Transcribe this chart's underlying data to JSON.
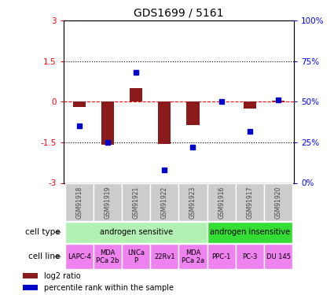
{
  "title": "GDS1699 / 5161",
  "samples": [
    "GSM91918",
    "GSM91919",
    "GSM91921",
    "GSM91922",
    "GSM91923",
    "GSM91916",
    "GSM91917",
    "GSM91920"
  ],
  "log2_ratio": [
    -0.2,
    -1.6,
    0.5,
    -1.55,
    -0.85,
    0.0,
    -0.25,
    0.05
  ],
  "percentile_rank": [
    35,
    25,
    68,
    8,
    22,
    50,
    32,
    51
  ],
  "ylim_left": [
    -3,
    3
  ],
  "ylim_right": [
    0,
    100
  ],
  "yticks_left": [
    -3,
    -1.5,
    0,
    1.5,
    3
  ],
  "yticks_right": [
    0,
    25,
    50,
    75,
    100
  ],
  "ytick_labels_left": [
    "-3",
    "-1.5",
    "0",
    "1.5",
    "3"
  ],
  "ytick_labels_right": [
    "0%",
    "25%",
    "50%",
    "75%",
    "100%"
  ],
  "bar_color": "#8B1A1A",
  "dot_color": "#0000CD",
  "cell_type_groups": [
    {
      "label": "androgen sensitive",
      "start": 0,
      "end": 4,
      "color": "#b3f0b3"
    },
    {
      "label": "androgen insensitive",
      "start": 5,
      "end": 7,
      "color": "#33dd33"
    }
  ],
  "cell_lines": [
    {
      "label": "LAPC-4",
      "sample_idx": 0
    },
    {
      "label": "MDA\nPCa 2b",
      "sample_idx": 1
    },
    {
      "label": "LNCa\nP",
      "sample_idx": 2
    },
    {
      "label": "22Rv1",
      "sample_idx": 3
    },
    {
      "label": "MDA\nPCa 2a",
      "sample_idx": 4
    },
    {
      "label": "PPC-1",
      "sample_idx": 5
    },
    {
      "label": "PC-3",
      "sample_idx": 6
    },
    {
      "label": "DU 145",
      "sample_idx": 7
    }
  ],
  "cell_line_color": "#EE82EE",
  "gsm_box_color": "#CCCCCC",
  "gsm_label_color": "#444444",
  "title_fontsize": 10,
  "legend_items": [
    {
      "label": "log2 ratio",
      "color": "#8B1A1A"
    },
    {
      "label": "percentile rank within the sample",
      "color": "#0000CD"
    }
  ]
}
